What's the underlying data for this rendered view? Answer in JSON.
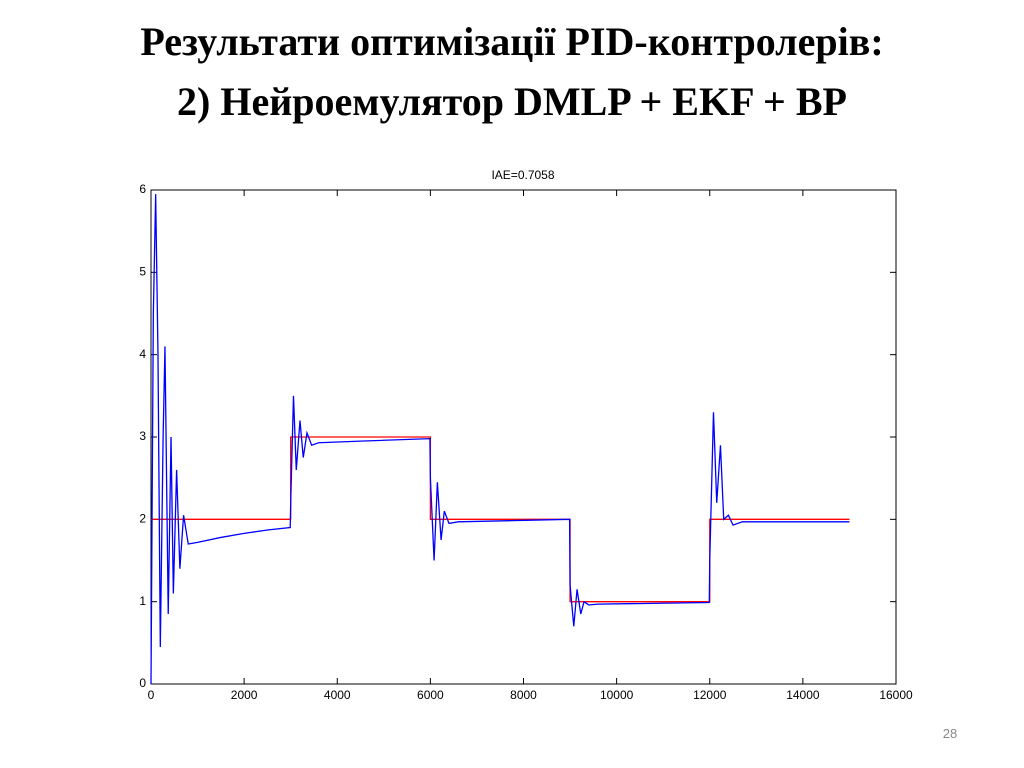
{
  "slide": {
    "title_lines": [
      "Результати оптимізації PID-контролерів:",
      "2) Нейроемулятор DMLP + EKF + BP"
    ],
    "page_number": "28"
  },
  "chart_data": {
    "type": "line",
    "title": "IAE=0.7058",
    "xlim": [
      0,
      16000
    ],
    "xticks": [
      0,
      2000,
      4000,
      6000,
      8000,
      10000,
      12000,
      14000,
      16000
    ],
    "ylim": [
      0,
      6
    ],
    "yticks": [
      0,
      1,
      2,
      3,
      4,
      5,
      6
    ],
    "grid": false,
    "series": [
      {
        "color": "#ff0000",
        "x": [
          0,
          3000,
          3000,
          6000,
          6000,
          9000,
          9000,
          12000,
          12000,
          15000
        ],
        "values": [
          2,
          2,
          3,
          3,
          2,
          2,
          1,
          1,
          2,
          2
        ]
      },
      {
        "color": "#0000ff",
        "x": [
          0,
          50,
          100,
          150,
          200,
          260,
          300,
          370,
          430,
          480,
          550,
          620,
          700,
          800,
          1000,
          1500,
          2000,
          2500,
          2990,
          3000,
          3060,
          3120,
          3200,
          3270,
          3350,
          3450,
          3600,
          4500,
          5990,
          6000,
          6080,
          6150,
          6230,
          6300,
          6400,
          6600,
          8990,
          9000,
          9080,
          9150,
          9230,
          9300,
          9400,
          9600,
          11990,
          12000,
          12080,
          12150,
          12230,
          12300,
          12400,
          12500,
          12700,
          15000
        ],
        "values": [
          0,
          4.5,
          5.95,
          4,
          0.45,
          3,
          4.1,
          0.85,
          3,
          1.1,
          2.6,
          1.4,
          2.05,
          1.7,
          1.72,
          1.78,
          1.83,
          1.87,
          1.9,
          2.2,
          3.5,
          2.6,
          3.2,
          2.75,
          3.05,
          2.9,
          2.93,
          2.95,
          2.98,
          2.5,
          1.5,
          2.45,
          1.75,
          2.1,
          1.95,
          1.97,
          2,
          1.2,
          0.7,
          1.15,
          0.85,
          1,
          0.96,
          0.97,
          0.99,
          1.5,
          3.3,
          2.2,
          2.9,
          2,
          2.05,
          1.93,
          1.97,
          1.97
        ]
      }
    ]
  }
}
